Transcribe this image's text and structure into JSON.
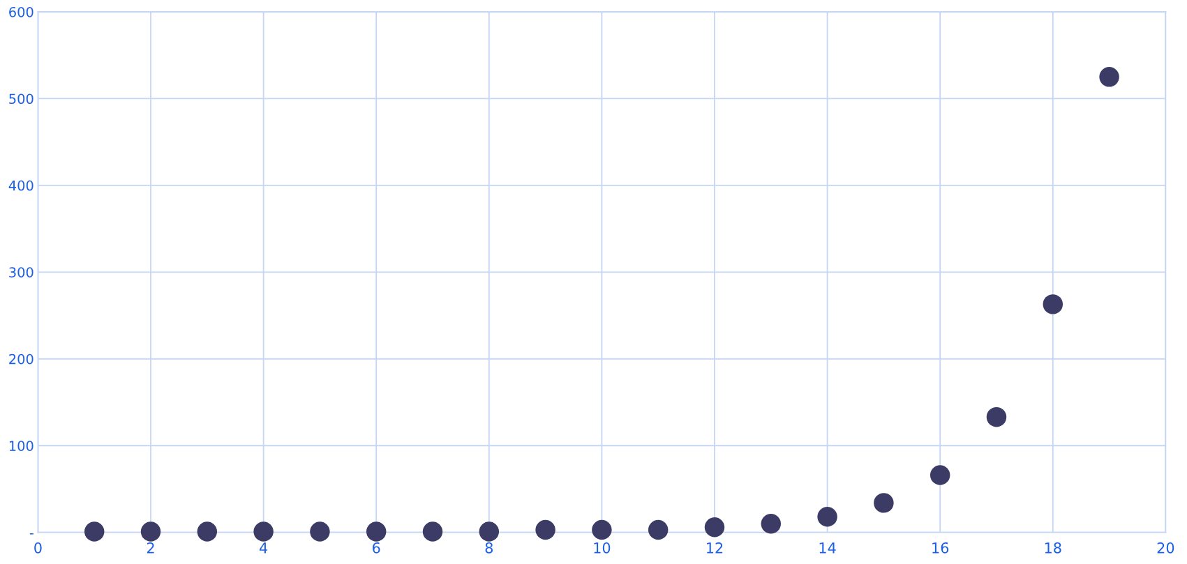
{
  "chart_data": {
    "type": "scatter",
    "x": [
      1,
      2,
      3,
      4,
      5,
      6,
      7,
      8,
      9,
      10,
      11,
      12,
      13,
      14,
      15,
      16,
      17,
      18,
      19
    ],
    "values": [
      1,
      1,
      1,
      1,
      1,
      1,
      1,
      1,
      3,
      3,
      3,
      6,
      10,
      18,
      34,
      66,
      133,
      263,
      525
    ],
    "color": "#3b3b66",
    "marker": "circle",
    "grid": true,
    "xlim": [
      0,
      20
    ],
    "xticks": [
      0,
      2,
      4,
      6,
      8,
      10,
      12,
      14,
      16,
      18,
      20
    ],
    "ylim": [
      0,
      600
    ],
    "yticks": [
      {
        "value": 0,
        "label": "-"
      },
      100,
      200,
      300,
      400,
      500,
      600
    ]
  }
}
